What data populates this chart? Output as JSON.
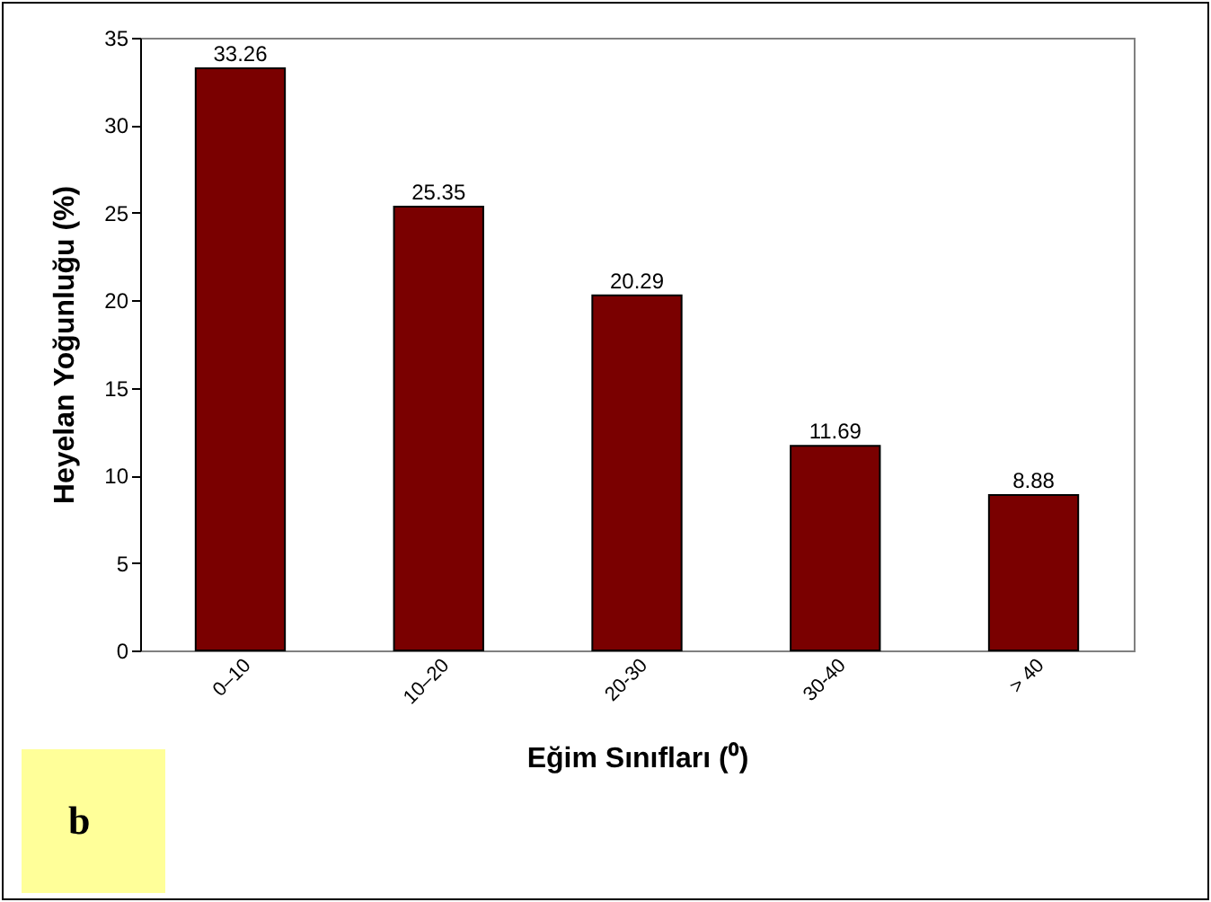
{
  "chart_data": {
    "type": "bar",
    "xlabel": "Eğim Sınıfları (⁰)",
    "ylabel": "Heyelan Yoğunluğu (%)",
    "categories": [
      "0–10",
      "10–20",
      "20-30",
      "30-40",
      "> 40"
    ],
    "values": [
      33.26,
      25.35,
      20.29,
      11.69,
      8.88
    ],
    "color": "#7a0000",
    "ylim": [
      0,
      35
    ],
    "yticks": [
      0,
      5,
      10,
      15,
      20,
      25,
      30,
      35
    ],
    "data_labels": true,
    "grid": false,
    "annotations": [
      "b"
    ]
  }
}
